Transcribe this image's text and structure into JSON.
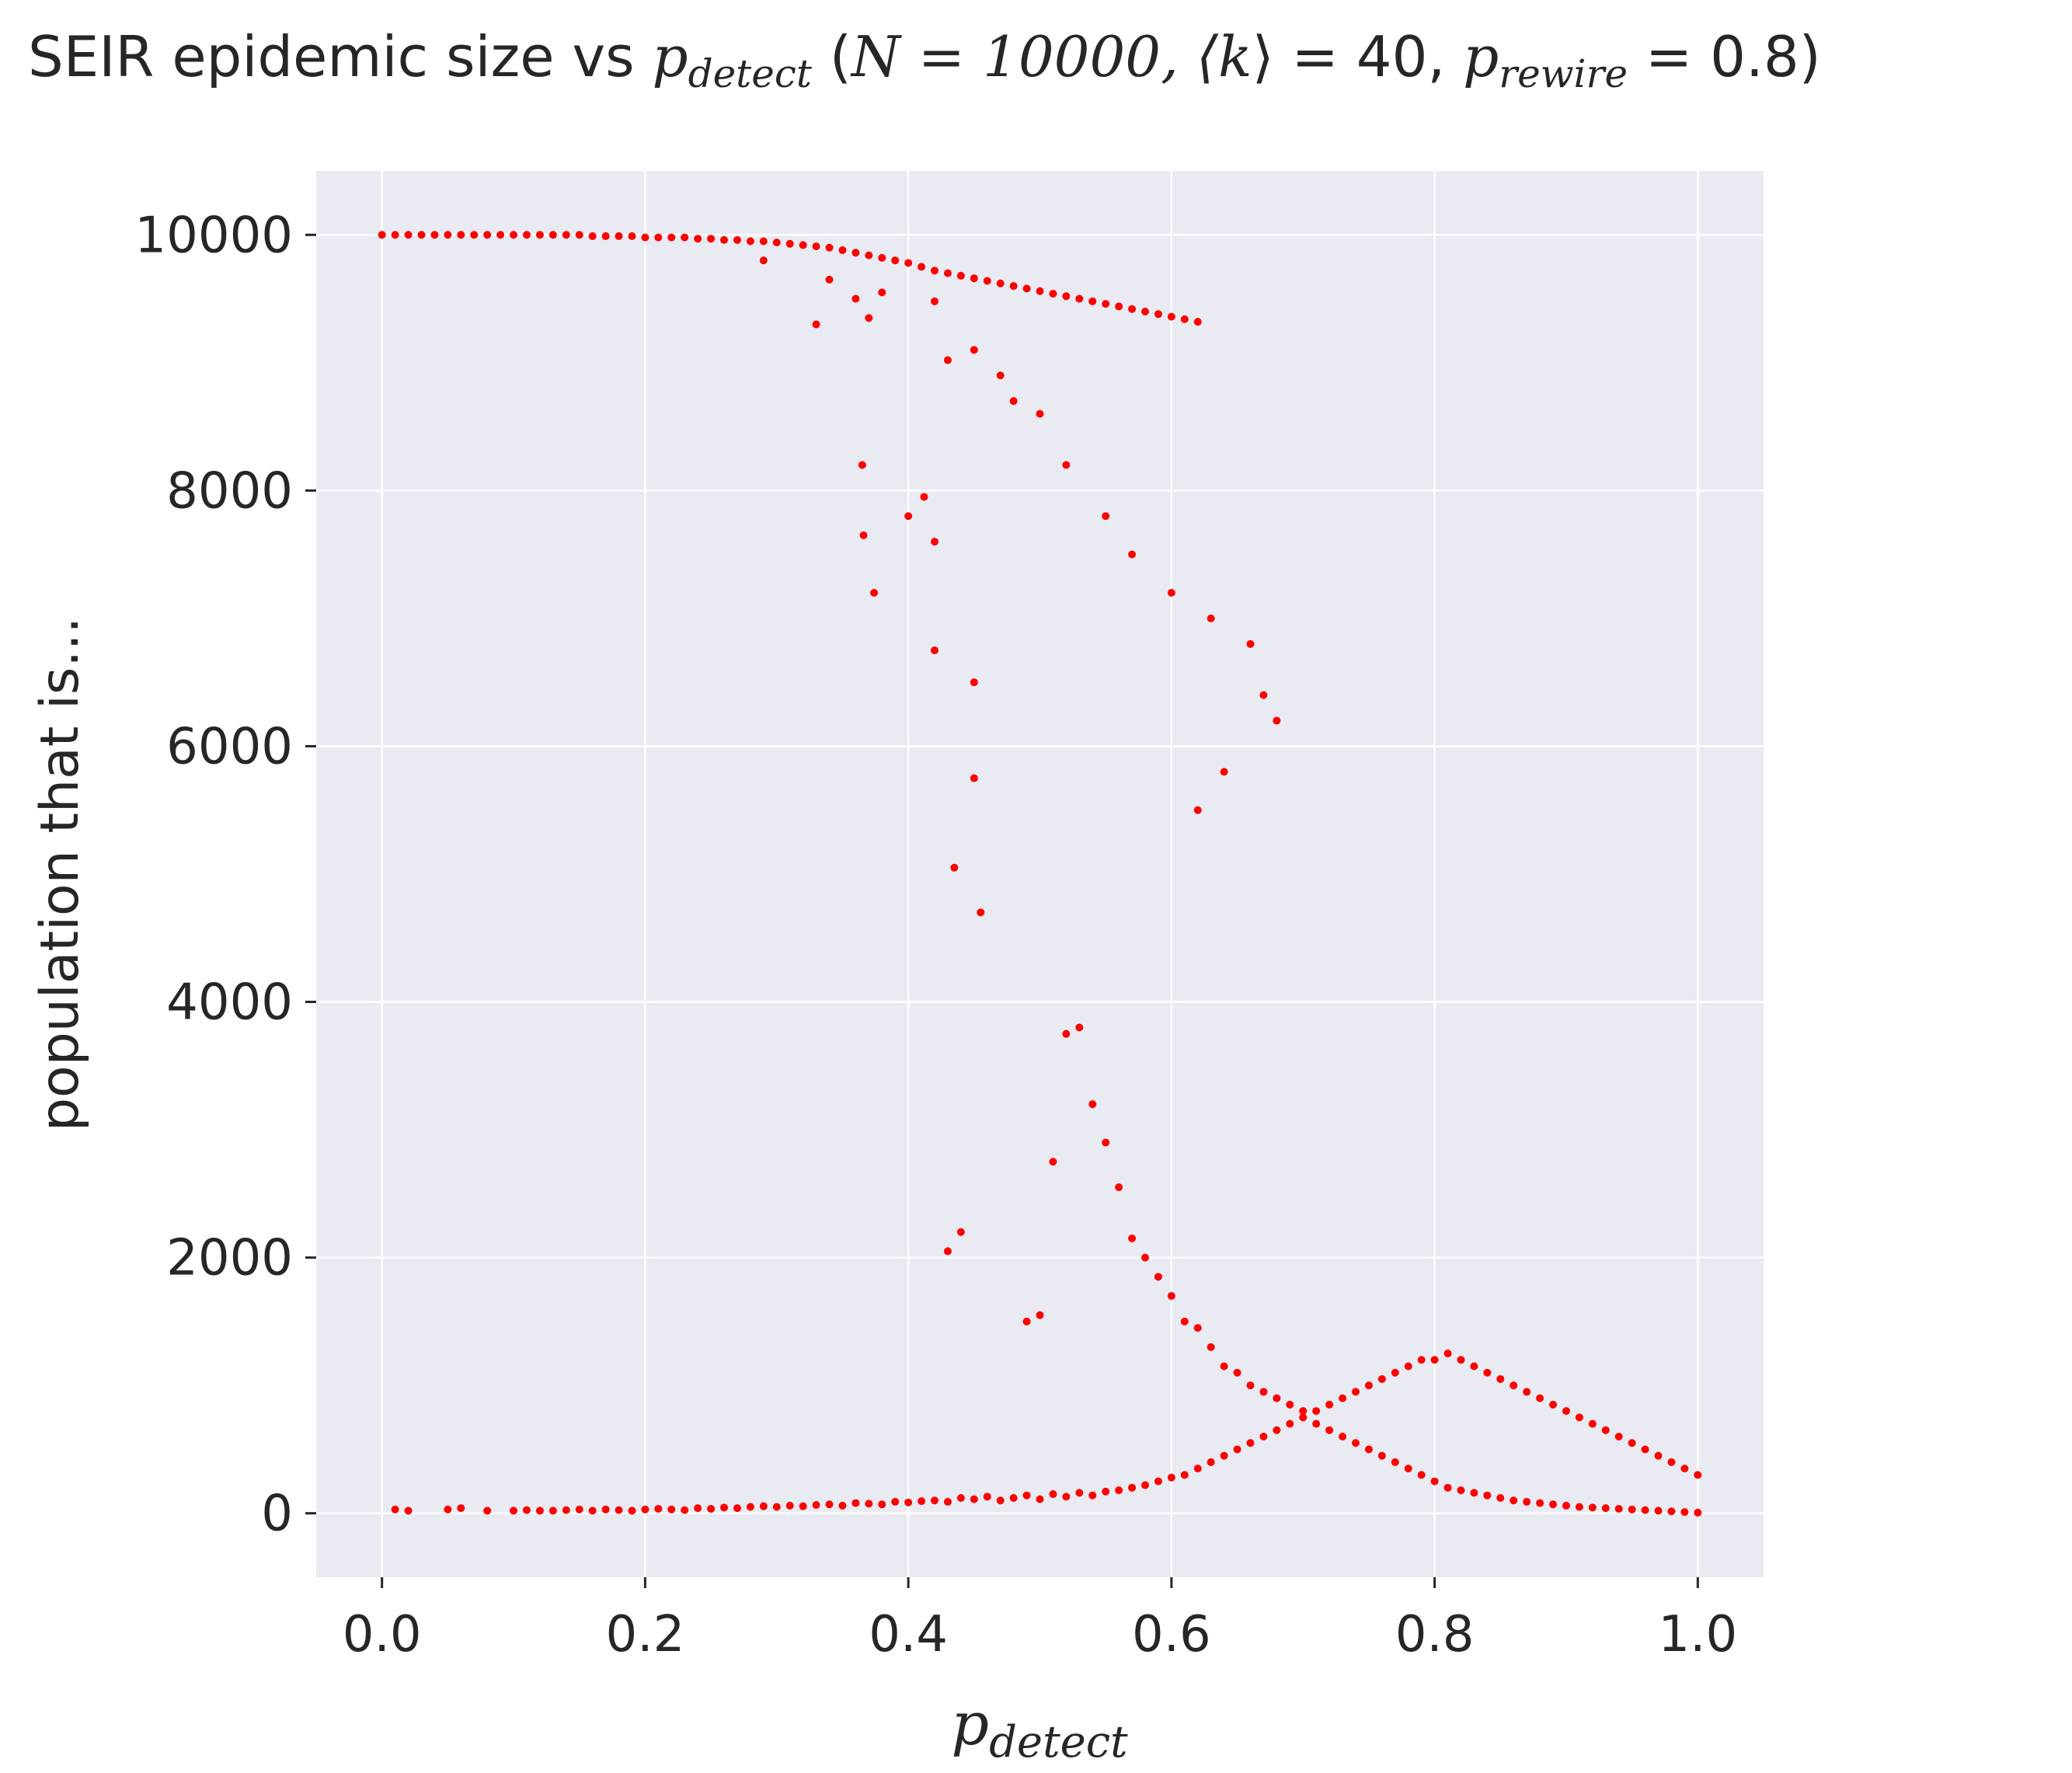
{
  "chart_data": {
    "type": "scatter",
    "title": {
      "prefix": "SEIR epidemic size vs ",
      "p": "p",
      "detect_sub": "detect",
      "params_open": " (",
      "N_eq": "N = 10000, ⟨",
      "k": "k",
      "k_close": "⟩ = 40, ",
      "p2": "p",
      "rewire_sub": "rewire",
      "tail": " = 0.8)"
    },
    "xlabel": {
      "p": "p",
      "sub": "detect"
    },
    "ylabel": "population that is...",
    "xlim": [
      -0.05,
      1.05
    ],
    "ylim": [
      -500,
      10500
    ],
    "xticks": [
      0.0,
      0.2,
      0.4,
      0.6,
      0.8,
      1.0
    ],
    "xtick_labels": [
      "0.0",
      "0.2",
      "0.4",
      "0.6",
      "0.8",
      "1.0"
    ],
    "yticks": [
      0,
      2000,
      4000,
      6000,
      8000,
      10000
    ],
    "ytick_labels": [
      "0",
      "2000",
      "4000",
      "6000",
      "8000",
      "10000"
    ],
    "grid": true,
    "background": "#eaeaf2",
    "grid_color": "#ffffff",
    "point_color": "#ff0000",
    "series": [
      {
        "x": [
          0.0,
          0.01,
          0.02,
          0.03,
          0.04,
          0.05,
          0.06,
          0.07,
          0.08,
          0.09,
          0.1,
          0.11,
          0.12,
          0.13,
          0.14,
          0.15,
          0.16,
          0.17,
          0.18,
          0.19,
          0.2,
          0.21,
          0.22,
          0.23,
          0.24,
          0.25,
          0.26,
          0.27,
          0.28,
          0.29,
          0.3,
          0.31,
          0.32,
          0.33,
          0.34,
          0.35,
          0.36,
          0.37,
          0.38,
          0.39,
          0.4,
          0.41,
          0.42,
          0.43,
          0.44,
          0.45,
          0.46,
          0.47,
          0.48,
          0.49,
          0.5,
          0.51,
          0.52,
          0.53,
          0.54,
          0.55,
          0.56,
          0.57,
          0.58,
          0.59,
          0.6,
          0.61,
          0.62,
          0.29,
          0.34,
          0.33,
          0.37,
          0.36,
          0.38,
          0.42,
          0.45,
          0.43,
          0.48,
          0.47,
          0.5,
          0.52,
          0.55,
          0.57,
          0.6,
          0.63,
          0.66,
          0.67,
          0.68,
          0.64,
          0.62,
          0.01,
          0.02,
          0.05,
          0.06,
          0.08,
          0.1,
          0.11,
          0.12,
          0.13,
          0.14,
          0.15,
          0.16,
          0.17,
          0.18,
          0.19,
          0.2,
          0.21,
          0.22,
          0.23,
          0.24,
          0.25,
          0.26,
          0.27,
          0.28,
          0.29,
          0.3,
          0.31,
          0.32,
          0.33,
          0.34,
          0.35,
          0.36,
          0.37,
          0.38,
          0.39,
          0.4,
          0.41,
          0.42,
          0.43,
          0.44,
          0.45,
          0.46,
          0.47,
          0.48,
          0.49,
          0.5,
          0.51,
          0.52,
          0.53,
          0.54,
          0.55,
          0.56,
          0.57,
          0.58,
          0.59,
          0.6,
          0.61,
          0.62,
          0.63,
          0.64,
          0.65,
          0.66,
          0.67,
          0.68,
          0.69,
          0.7,
          0.71,
          0.72,
          0.73,
          0.74,
          0.75,
          0.76,
          0.77,
          0.78,
          0.79,
          0.8,
          0.81,
          0.82,
          0.83,
          0.84,
          0.85,
          0.86,
          0.87,
          0.88,
          0.89,
          0.9,
          0.91,
          0.92,
          0.93,
          0.94,
          0.95,
          0.96,
          0.97,
          0.98,
          0.99,
          1.0,
          0.365,
          0.366,
          0.374,
          0.4,
          0.412,
          0.42,
          0.42,
          0.435,
          0.45,
          0.45,
          0.455,
          0.43,
          0.44,
          0.49,
          0.5,
          0.51,
          0.52,
          0.53,
          0.54,
          0.55,
          0.56,
          0.57,
          0.58,
          0.59,
          0.6,
          0.61,
          0.62,
          0.63,
          0.64,
          0.65,
          0.66,
          0.67,
          0.68,
          0.69,
          0.7,
          0.71,
          0.72,
          0.73,
          0.74,
          0.75,
          0.76,
          0.77,
          0.78,
          0.79,
          0.8,
          0.81,
          0.82,
          0.83,
          0.84,
          0.85,
          0.86,
          0.87,
          0.88,
          0.89,
          0.9,
          0.91,
          0.92,
          0.93,
          0.94,
          0.95,
          0.96,
          0.97,
          0.98,
          0.99,
          1.0
        ],
        "y": [
          10000,
          10000,
          10000,
          10000,
          10000,
          10000,
          10000,
          10000,
          10000,
          10000,
          10000,
          10000,
          10000,
          10000,
          10000,
          10000,
          9990,
          9990,
          9990,
          9990,
          9980,
          9980,
          9980,
          9980,
          9970,
          9970,
          9960,
          9960,
          9950,
          9950,
          9940,
          9930,
          9920,
          9910,
          9900,
          9880,
          9860,
          9840,
          9820,
          9800,
          9780,
          9750,
          9720,
          9700,
          9680,
          9660,
          9640,
          9620,
          9600,
          9580,
          9560,
          9540,
          9520,
          9500,
          9480,
          9460,
          9440,
          9420,
          9400,
          9380,
          9360,
          9340,
          9320,
          9800,
          9650,
          9300,
          9350,
          9500,
          9550,
          9480,
          9100,
          9020,
          8700,
          8900,
          8600,
          8200,
          7800,
          7500,
          7200,
          7000,
          6800,
          6400,
          6200,
          5800,
          5500,
          30,
          20,
          30,
          40,
          20,
          20,
          25,
          20,
          20,
          25,
          30,
          20,
          30,
          25,
          20,
          30,
          35,
          30,
          25,
          40,
          35,
          45,
          40,
          50,
          55,
          50,
          60,
          55,
          65,
          70,
          60,
          80,
          75,
          70,
          90,
          85,
          95,
          100,
          90,
          120,
          110,
          130,
          100,
          120,
          140,
          110,
          150,
          130,
          160,
          140,
          170,
          180,
          200,
          220,
          250,
          280,
          300,
          350,
          400,
          450,
          500,
          550,
          600,
          650,
          700,
          750,
          800,
          850,
          900,
          950,
          1000,
          1050,
          1100,
          1150,
          1200,
          1200,
          1250,
          1200,
          1150,
          1100,
          1050,
          1000,
          950,
          900,
          850,
          800,
          750,
          700,
          650,
          600,
          550,
          500,
          450,
          400,
          350,
          300,
          8200,
          7650,
          7200,
          7800,
          7950,
          6750,
          7600,
          5050,
          6500,
          5750,
          4700,
          2050,
          2200,
          1500,
          1550,
          2750,
          3750,
          3800,
          3200,
          2900,
          2550,
          2150,
          2000,
          1850,
          1700,
          1500,
          1450,
          1300,
          1150,
          1100,
          1000,
          950,
          900,
          850,
          800,
          700,
          650,
          600,
          550,
          500,
          450,
          400,
          350,
          300,
          250,
          200,
          180,
          160,
          140,
          120,
          100,
          90,
          80,
          70,
          60,
          50,
          45,
          40,
          35,
          30,
          25,
          20,
          15,
          10,
          5
        ]
      }
    ]
  }
}
